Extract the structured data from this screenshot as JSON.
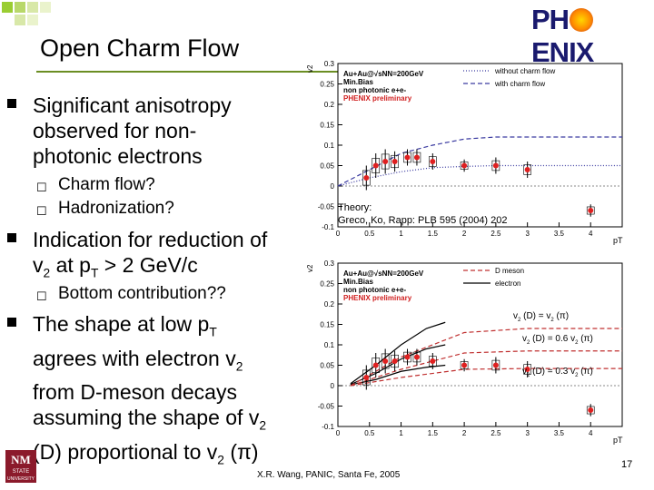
{
  "title": "Open Charm Flow",
  "bullets": [
    {
      "text": "Significant anisotropy observed for non-photonic electrons",
      "lines": [
        "Significant anisotropy",
        "observed for non-",
        "photonic electrons"
      ],
      "subs": [
        "Charm flow?",
        "Hadronization?"
      ]
    },
    {
      "lines": [
        "Indication for reduction of",
        "v2 at pT > 2 GeV/c"
      ],
      "subs": [
        "Bottom contribution??"
      ]
    },
    {
      "lines": [
        "The shape at low pT",
        "agrees with electron v2",
        "from D-meson decays",
        "assuming the shape of v2",
        "(D) proportional to v2 (π)"
      ]
    }
  ],
  "theory_note": [
    "Theory:",
    "Greco, Ko, Rapp:  PLB 595 (2004) 202"
  ],
  "footer": "X.R. Wang, PANIC, Santa Fe, 2005",
  "page_number": "17",
  "logo_text": "PHENIX",
  "chart_data": [
    {
      "type": "scatter",
      "ylabel": "v2",
      "xlabel": "pT",
      "ylim": [
        -0.1,
        0.3
      ],
      "xlim": [
        0,
        4.5
      ],
      "x_ticks": [
        "0",
        "0.5",
        "1",
        "1.5",
        "2",
        "2.5",
        "3",
        "3.5",
        "4"
      ],
      "y_ticks": [
        "-0.1",
        "-0.05",
        "0",
        "0.05",
        "0.1",
        "0.15",
        "0.2",
        "0.25",
        "0.3"
      ],
      "info_lines": [
        "Au+Au@√sNN=200GeV",
        "Min.Bias",
        "non photonic e+e-",
        "PHENIX preliminary"
      ],
      "legend": [
        {
          "label": "without charm flow",
          "style": "dotted",
          "color": "#3a3aa0"
        },
        {
          "label": "with charm flow",
          "style": "dashed",
          "color": "#3a3aa0"
        }
      ],
      "series": [
        {
          "name": "data",
          "x": [
            0.45,
            0.6,
            0.75,
            0.9,
            1.1,
            1.25,
            1.5,
            2.0,
            2.5,
            3.0,
            4.0
          ],
          "y": [
            0.02,
            0.05,
            0.06,
            0.06,
            0.07,
            0.07,
            0.06,
            0.05,
            0.05,
            0.04,
            -0.06
          ],
          "err": [
            0.03,
            0.03,
            0.03,
            0.025,
            0.02,
            0.02,
            0.02,
            0.015,
            0.02,
            0.02,
            0.015
          ]
        }
      ],
      "curves": {
        "without_charm_flow": {
          "x": [
            0,
            0.5,
            1,
            1.5,
            2,
            2.5,
            3,
            3.5,
            4.5
          ],
          "y": [
            0,
            0.02,
            0.035,
            0.045,
            0.048,
            0.05,
            0.05,
            0.05,
            0.05
          ]
        },
        "with_charm_flow": {
          "x": [
            0,
            0.5,
            1,
            1.5,
            2,
            2.5,
            3,
            3.5,
            4.5
          ],
          "y": [
            0,
            0.04,
            0.08,
            0.1,
            0.115,
            0.12,
            0.12,
            0.12,
            0.12
          ]
        }
      }
    },
    {
      "type": "scatter",
      "ylabel": "v2",
      "xlabel": "pT",
      "ylim": [
        -0.1,
        0.3
      ],
      "xlim": [
        0,
        4.5
      ],
      "x_ticks": [
        "0",
        "0.5",
        "1",
        "1.5",
        "2",
        "2.5",
        "3",
        "3.5",
        "4"
      ],
      "y_ticks": [
        "-0.1",
        "-0.05",
        "0",
        "0.05",
        "0.1",
        "0.15",
        "0.2",
        "0.25",
        "0.3"
      ],
      "info_lines": [
        "Au+Au@√sNN=200GeV",
        "Min.Bias",
        "non photonic e+e-",
        "PHENIX preliminary"
      ],
      "legend": [
        {
          "label": "D meson",
          "style": "dashed",
          "color": "#c03030"
        },
        {
          "label": "electron",
          "style": "solid",
          "color": "#000000"
        }
      ],
      "annotations": [
        "v2 (D) = v2 (π)",
        "v2 (D) = 0.6 v2 (π)",
        "v2 (D) = 0.3 v2 (π)"
      ],
      "series": [
        {
          "name": "data",
          "x": [
            0.45,
            0.6,
            0.75,
            0.9,
            1.1,
            1.25,
            1.5,
            2.0,
            2.5,
            3.0,
            4.0
          ],
          "y": [
            0.02,
            0.05,
            0.06,
            0.06,
            0.07,
            0.07,
            0.06,
            0.05,
            0.05,
            0.04,
            -0.06
          ],
          "err": [
            0.03,
            0.03,
            0.03,
            0.025,
            0.02,
            0.02,
            0.02,
            0.015,
            0.02,
            0.02,
            0.015
          ]
        }
      ],
      "curves": {
        "electron_1": {
          "x": [
            0.2,
            0.6,
            1.0,
            1.4,
            1.7
          ],
          "y": [
            0.005,
            0.05,
            0.1,
            0.14,
            0.155
          ]
        },
        "electron_06": {
          "x": [
            0.2,
            0.6,
            1.0,
            1.4,
            1.7
          ],
          "y": [
            0.003,
            0.03,
            0.065,
            0.09,
            0.1
          ]
        },
        "electron_03": {
          "x": [
            0.2,
            0.6,
            1.0,
            1.4,
            1.7
          ],
          "y": [
            0.002,
            0.015,
            0.035,
            0.045,
            0.05
          ]
        },
        "dmeson_1": {
          "x": [
            0.2,
            1,
            2,
            3,
            4.5
          ],
          "y": [
            0.0,
            0.07,
            0.13,
            0.14,
            0.14
          ]
        },
        "dmeson_06": {
          "x": [
            0.2,
            1,
            2,
            3,
            4.5
          ],
          "y": [
            0.0,
            0.04,
            0.08,
            0.085,
            0.085
          ]
        },
        "dmeson_03": {
          "x": [
            0.2,
            1,
            2,
            3,
            4.5
          ],
          "y": [
            0.0,
            0.02,
            0.04,
            0.042,
            0.042
          ]
        }
      }
    }
  ]
}
